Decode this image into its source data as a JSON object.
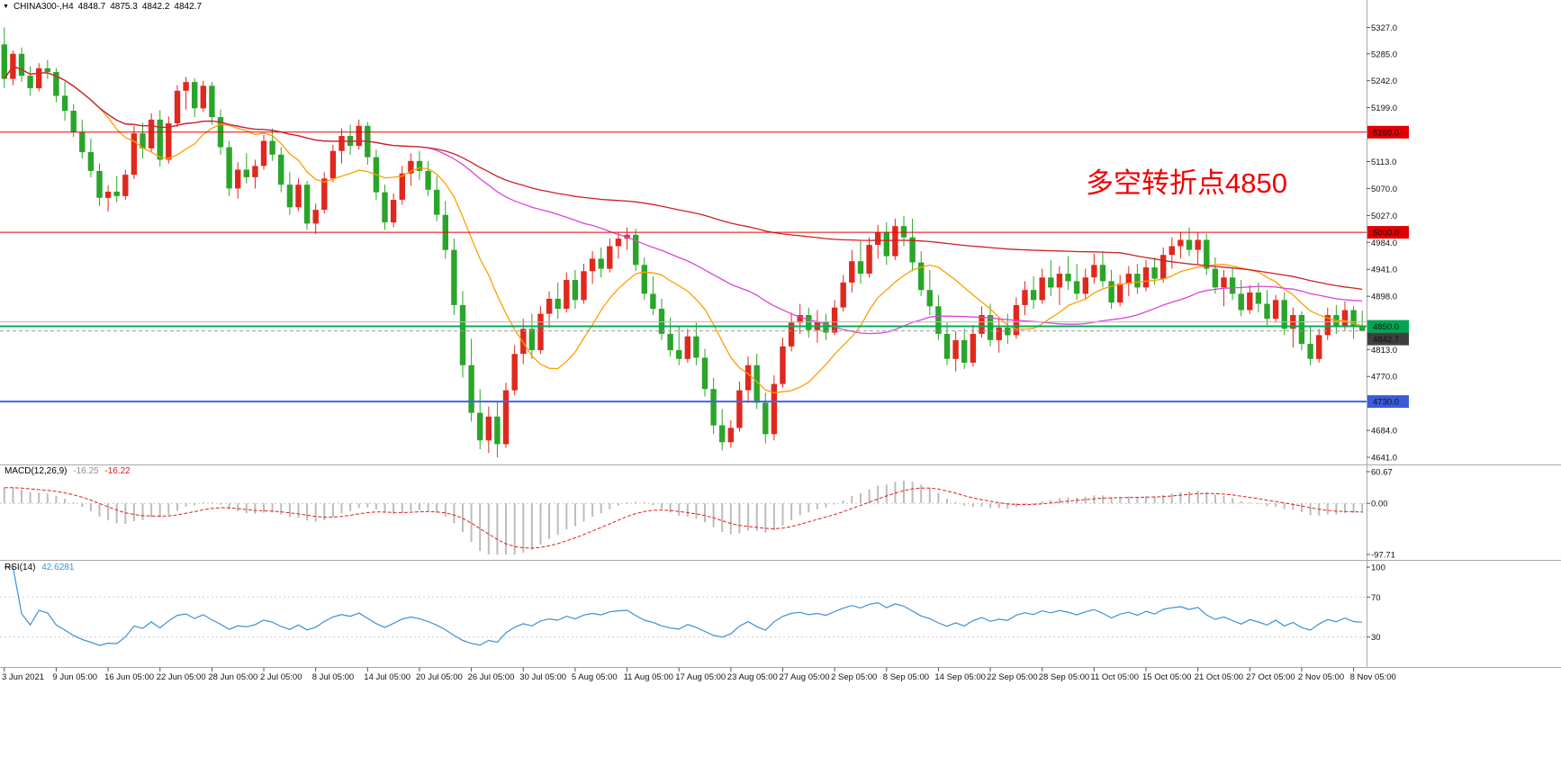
{
  "title_bar": {
    "marker": "▼",
    "symbol_period": "CHINA300-,H4",
    "open": "4848.7",
    "high": "4875.3",
    "low": "4842.2",
    "close": "4842.7"
  },
  "annotation": {
    "text": "多空转折点4850",
    "color": "#f00000"
  },
  "chart_data": [
    {
      "type": "candlestick",
      "title": "CHINA300-,H4",
      "symbol": "CHINA300-",
      "timeframe": "H4",
      "grid": false,
      "bars_per_label": 6,
      "x_labels": [
        "3 Jun 2021",
        "9 Jun 05:00",
        "16 Jun 05:00",
        "22 Jun 05:00",
        "28 Jun 05:00",
        "2 Jul 05:00",
        "8 Jul 05:00",
        "14 Jul 05:00",
        "20 Jul 05:00",
        "26 Jul 05:00",
        "30 Jul 05:00",
        "5 Aug 05:00",
        "11 Aug 05:00",
        "17 Aug 05:00",
        "23 Aug 05:00",
        "27 Aug 05:00",
        "2 Sep 05:00",
        "8 Sep 05:00",
        "14 Sep 05:00",
        "22 Sep 05:00",
        "28 Sep 05:00",
        "11 Oct 05:00",
        "15 Oct 05:00",
        "21 Oct 05:00",
        "27 Oct 05:00",
        "2 Nov 05:00",
        "8 Nov 05:00"
      ],
      "ylim": [
        4631,
        5345
      ],
      "y_ticks": [
        5327.0,
        5285.0,
        5242.0,
        5199.0,
        5113.0,
        5070.0,
        5027.0,
        4984.0,
        4941.0,
        4898.0,
        4813.0,
        4770.0,
        4684.0,
        4641.0
      ],
      "colors": {
        "up": "#e0281e",
        "down": "#2aa52a",
        "background": "#ffffff"
      },
      "hlines": [
        {
          "value": 5160.0,
          "color": "#ee0000",
          "width": 1,
          "label": "5160.0",
          "label_bg": "#e10000"
        },
        {
          "value": 5000.0,
          "color": "#ee0000",
          "width": 1,
          "label": "5000.0",
          "label_bg": "#e10000"
        },
        {
          "value": 4857.0,
          "color": "#b8b8b8",
          "width": 1,
          "label": null,
          "label_bg": null
        },
        {
          "value": 4850.0,
          "color": "#00b050",
          "width": 2,
          "label": "4850.0",
          "label_bg": "#00a651"
        },
        {
          "value": 4730.0,
          "color": "#4263eb",
          "width": 2,
          "label": "4730.0",
          "label_bg": "#3b5bdb"
        }
      ],
      "current_price": {
        "value": 4842.7,
        "label": "4842.7",
        "label_bg": "#3f3f3f",
        "line_color": "#9a9a9a"
      },
      "moving_averages": [
        {
          "name": "fast",
          "period": 12,
          "color": "#ff9d00"
        },
        {
          "name": "medium",
          "period": 50,
          "color": "#d946d9"
        },
        {
          "name": "slow",
          "period": 130,
          "color": "#cc2222"
        }
      ],
      "candles": [
        [
          5300,
          5327,
          5230,
          5245
        ],
        [
          5245,
          5290,
          5235,
          5285
        ],
        [
          5285,
          5295,
          5240,
          5250
        ],
        [
          5250,
          5265,
          5218,
          5230
        ],
        [
          5230,
          5270,
          5225,
          5262
        ],
        [
          5262,
          5275,
          5245,
          5256
        ],
        [
          5256,
          5262,
          5208,
          5218
        ],
        [
          5218,
          5240,
          5178,
          5194
        ],
        [
          5194,
          5205,
          5152,
          5160
        ],
        [
          5160,
          5180,
          5118,
          5128
        ],
        [
          5128,
          5150,
          5088,
          5098
        ],
        [
          5098,
          5110,
          5042,
          5055
        ],
        [
          5055,
          5075,
          5033,
          5065
        ],
        [
          5065,
          5090,
          5048,
          5058
        ],
        [
          5058,
          5100,
          5052,
          5092
        ],
        [
          5092,
          5170,
          5085,
          5158
        ],
        [
          5158,
          5175,
          5118,
          5134
        ],
        [
          5134,
          5190,
          5128,
          5180
        ],
        [
          5180,
          5195,
          5105,
          5116
        ],
        [
          5116,
          5185,
          5110,
          5174
        ],
        [
          5174,
          5235,
          5168,
          5226
        ],
        [
          5226,
          5248,
          5196,
          5240
        ],
        [
          5240,
          5246,
          5184,
          5198
        ],
        [
          5198,
          5242,
          5192,
          5234
        ],
        [
          5234,
          5240,
          5172,
          5184
        ],
        [
          5184,
          5196,
          5124,
          5136
        ],
        [
          5136,
          5146,
          5058,
          5070
        ],
        [
          5070,
          5112,
          5054,
          5100
        ],
        [
          5100,
          5126,
          5078,
          5088
        ],
        [
          5088,
          5116,
          5070,
          5106
        ],
        [
          5106,
          5156,
          5100,
          5146
        ],
        [
          5146,
          5166,
          5114,
          5124
        ],
        [
          5124,
          5136,
          5064,
          5076
        ],
        [
          5076,
          5096,
          5028,
          5040
        ],
        [
          5040,
          5086,
          5034,
          5076
        ],
        [
          5076,
          5082,
          5004,
          5014
        ],
        [
          5014,
          5046,
          4997,
          5036
        ],
        [
          5036,
          5096,
          5030,
          5086
        ],
        [
          5086,
          5140,
          5080,
          5130
        ],
        [
          5130,
          5166,
          5110,
          5154
        ],
        [
          5154,
          5172,
          5124,
          5138
        ],
        [
          5138,
          5180,
          5132,
          5170
        ],
        [
          5170,
          5176,
          5108,
          5120
        ],
        [
          5120,
          5132,
          5052,
          5064
        ],
        [
          5064,
          5076,
          5004,
          5016
        ],
        [
          5016,
          5062,
          5008,
          5052
        ],
        [
          5052,
          5106,
          5044,
          5094
        ],
        [
          5094,
          5126,
          5074,
          5114
        ],
        [
          5114,
          5130,
          5084,
          5098
        ],
        [
          5098,
          5114,
          5058,
          5068
        ],
        [
          5068,
          5090,
          5018,
          5028
        ],
        [
          5028,
          5050,
          4958,
          4972
        ],
        [
          4972,
          4990,
          4868,
          4884
        ],
        [
          4884,
          4906,
          4768,
          4788
        ],
        [
          4788,
          4830,
          4698,
          4712
        ],
        [
          4712,
          4750,
          4654,
          4668
        ],
        [
          4668,
          4722,
          4648,
          4706
        ],
        [
          4706,
          4730,
          4641,
          4662
        ],
        [
          4662,
          4760,
          4656,
          4748
        ],
        [
          4748,
          4820,
          4740,
          4806
        ],
        [
          4806,
          4862,
          4790,
          4846
        ],
        [
          4846,
          4870,
          4798,
          4812
        ],
        [
          4812,
          4882,
          4806,
          4870
        ],
        [
          4870,
          4906,
          4848,
          4894
        ],
        [
          4894,
          4920,
          4862,
          4878
        ],
        [
          4878,
          4936,
          4872,
          4924
        ],
        [
          4924,
          4940,
          4878,
          4892
        ],
        [
          4892,
          4950,
          4886,
          4938
        ],
        [
          4938,
          4970,
          4918,
          4958
        ],
        [
          4958,
          4976,
          4928,
          4942
        ],
        [
          4942,
          4990,
          4936,
          4978
        ],
        [
          4978,
          5000,
          4958,
          4990
        ],
        [
          4990,
          5008,
          4972,
          4996
        ],
        [
          4996,
          5006,
          4938,
          4948
        ],
        [
          4948,
          4960,
          4892,
          4902
        ],
        [
          4902,
          4930,
          4868,
          4878
        ],
        [
          4878,
          4894,
          4828,
          4838
        ],
        [
          4838,
          4864,
          4802,
          4812
        ],
        [
          4812,
          4850,
          4788,
          4798
        ],
        [
          4798,
          4846,
          4792,
          4834
        ],
        [
          4834,
          4856,
          4788,
          4800
        ],
        [
          4800,
          4814,
          4738,
          4750
        ],
        [
          4750,
          4768,
          4678,
          4692
        ],
        [
          4692,
          4718,
          4652,
          4665
        ],
        [
          4665,
          4700,
          4656,
          4688
        ],
        [
          4688,
          4762,
          4682,
          4748
        ],
        [
          4748,
          4802,
          4728,
          4788
        ],
        [
          4788,
          4806,
          4718,
          4728
        ],
        [
          4728,
          4744,
          4663,
          4678
        ],
        [
          4678,
          4772,
          4668,
          4758
        ],
        [
          4758,
          4832,
          4752,
          4818
        ],
        [
          4818,
          4872,
          4810,
          4856
        ],
        [
          4856,
          4886,
          4838,
          4868
        ],
        [
          4868,
          4880,
          4832,
          4844
        ],
        [
          4844,
          4876,
          4824,
          4858
        ],
        [
          4858,
          4870,
          4828,
          4840
        ],
        [
          4840,
          4892,
          4836,
          4880
        ],
        [
          4880,
          4932,
          4874,
          4920
        ],
        [
          4920,
          4972,
          4904,
          4954
        ],
        [
          4954,
          4986,
          4918,
          4934
        ],
        [
          4934,
          4992,
          4928,
          4980
        ],
        [
          4980,
          5012,
          4958,
          5000
        ],
        [
          5000,
          5016,
          4948,
          4962
        ],
        [
          4962,
          5022,
          4956,
          5010
        ],
        [
          5010,
          5026,
          4978,
          4992
        ],
        [
          4992,
          5022,
          4938,
          4952
        ],
        [
          4952,
          4970,
          4898,
          4908
        ],
        [
          4908,
          4940,
          4868,
          4882
        ],
        [
          4882,
          4900,
          4828,
          4838
        ],
        [
          4838,
          4856,
          4788,
          4798
        ],
        [
          4798,
          4842,
          4778,
          4828
        ],
        [
          4828,
          4846,
          4782,
          4792
        ],
        [
          4792,
          4852,
          4786,
          4838
        ],
        [
          4838,
          4882,
          4832,
          4868
        ],
        [
          4868,
          4886,
          4818,
          4828
        ],
        [
          4828,
          4862,
          4808,
          4848
        ],
        [
          4848,
          4870,
          4822,
          4836
        ],
        [
          4836,
          4896,
          4830,
          4884
        ],
        [
          4884,
          4922,
          4868,
          4908
        ],
        [
          4908,
          4930,
          4878,
          4892
        ],
        [
          4892,
          4942,
          4886,
          4928
        ],
        [
          4928,
          4956,
          4898,
          4912
        ],
        [
          4912,
          4946,
          4884,
          4934
        ],
        [
          4934,
          4962,
          4908,
          4922
        ],
        [
          4922,
          4950,
          4892,
          4902
        ],
        [
          4902,
          4942,
          4894,
          4928
        ],
        [
          4928,
          4966,
          4918,
          4948
        ],
        [
          4948,
          4970,
          4912,
          4922
        ],
        [
          4922,
          4940,
          4878,
          4888
        ],
        [
          4888,
          4932,
          4882,
          4918
        ],
        [
          4918,
          4946,
          4898,
          4934
        ],
        [
          4934,
          4950,
          4902,
          4912
        ],
        [
          4912,
          4956,
          4906,
          4944
        ],
        [
          4944,
          4960,
          4916,
          4926
        ],
        [
          4926,
          4976,
          4920,
          4964
        ],
        [
          4964,
          4992,
          4942,
          4978
        ],
        [
          4978,
          5000,
          4958,
          4988
        ],
        [
          4988,
          5008,
          4962,
          4972
        ],
        [
          4972,
          5000,
          4948,
          4988
        ],
        [
          4988,
          4998,
          4932,
          4942
        ],
        [
          4942,
          4960,
          4902,
          4912
        ],
        [
          4912,
          4940,
          4882,
          4928
        ],
        [
          4928,
          4944,
          4892,
          4902
        ],
        [
          4902,
          4924,
          4866,
          4876
        ],
        [
          4876,
          4916,
          4870,
          4904
        ],
        [
          4904,
          4920,
          4872,
          4886
        ],
        [
          4886,
          4908,
          4852,
          4862
        ],
        [
          4862,
          4900,
          4856,
          4892
        ],
        [
          4892,
          4904,
          4836,
          4846
        ],
        [
          4846,
          4880,
          4816,
          4868
        ],
        [
          4868,
          4874,
          4812,
          4822
        ],
        [
          4822,
          4850,
          4788,
          4798
        ],
        [
          4798,
          4846,
          4792,
          4836
        ],
        [
          4836,
          4880,
          4828,
          4868
        ],
        [
          4868,
          4884,
          4838,
          4850
        ],
        [
          4850,
          4890,
          4844,
          4876
        ],
        [
          4876,
          4882,
          4830,
          4848.7
        ],
        [
          4848.7,
          4875.3,
          4842.2,
          4842.7
        ]
      ]
    },
    {
      "type": "macd",
      "label": "MACD(12,26,9)",
      "params": [
        12,
        26,
        9
      ],
      "values": [
        "-16.25",
        "-16.22"
      ],
      "axis_ticks": [
        "60.67",
        "0.00",
        "-97.71"
      ],
      "histogram_color": "#bcbcbc",
      "signal_color": "#e02020"
    },
    {
      "type": "rsi",
      "label": "RSI(14)",
      "period": 14,
      "value": "42.6281",
      "axis_ticks": [
        "100",
        "70",
        "30"
      ],
      "levels": [
        70,
        30
      ],
      "line_color": "#3f8fd6",
      "level_color": "#c9c9e0"
    }
  ]
}
